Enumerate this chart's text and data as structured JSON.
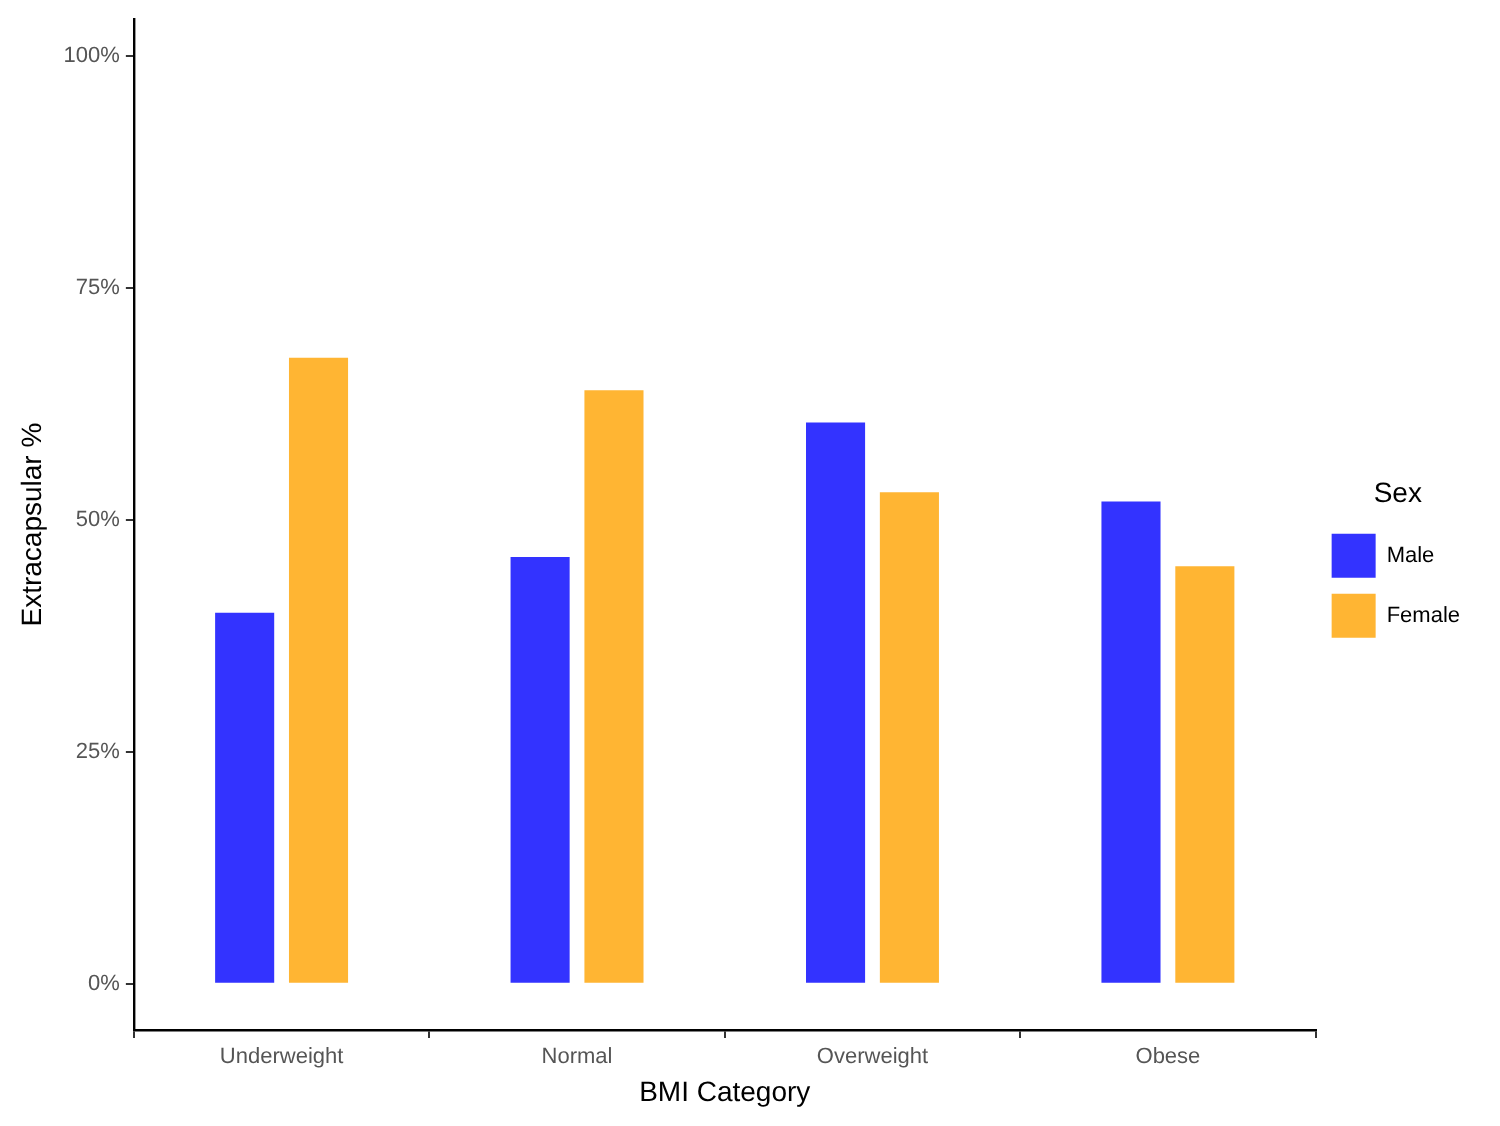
{
  "chart_data": {
    "type": "bar",
    "xlabel": "BMI Category",
    "ylabel": "Extracapsular %",
    "legend_title": "Sex",
    "legend": "right",
    "categories": [
      "Underweight",
      "Normal",
      "Overweight",
      "Obese"
    ],
    "series": [
      {
        "name": "Male",
        "color": "#3333ff",
        "values": [
          40,
          46,
          60.5,
          52
        ]
      },
      {
        "name": "Female",
        "color": "#ffb533",
        "values": [
          67.5,
          64,
          53,
          45
        ]
      }
    ],
    "ylim": [
      -5,
      104
    ],
    "yticks": [
      {
        "value": 0,
        "label": "0%"
      },
      {
        "value": 25,
        "label": "25%"
      },
      {
        "value": 50,
        "label": "50%"
      },
      {
        "value": 75,
        "label": "75%"
      },
      {
        "value": 100,
        "label": "100%"
      }
    ],
    "grid": false
  }
}
